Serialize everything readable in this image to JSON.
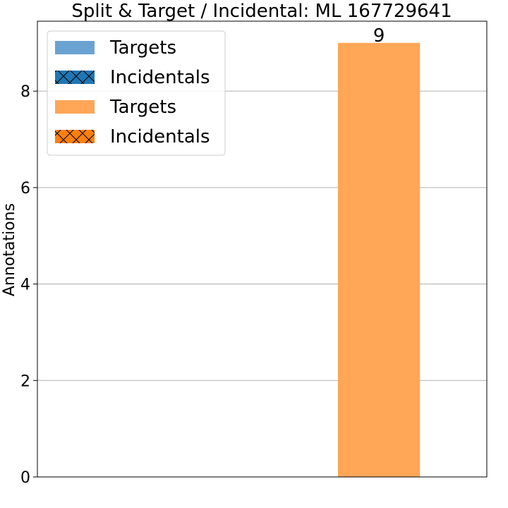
{
  "chart_data": {
    "type": "bar",
    "title": "Split & Target / Incidental: ML 167729641",
    "xlabel": "",
    "ylabel": "Annotations",
    "ylim": [
      0,
      9.45
    ],
    "yticks": [
      0,
      2,
      4,
      6,
      8
    ],
    "grid": "horizontal",
    "legend_position": "top-left",
    "categories": [
      "",
      ""
    ],
    "series": [
      {
        "name": "Targets",
        "color": "#6aa3d2",
        "hatch": false,
        "values": [
          0,
          0
        ]
      },
      {
        "name": "Incidentals",
        "color": "#1f77b4",
        "hatch": true,
        "values": [
          0,
          0
        ]
      },
      {
        "name": "Targets",
        "color": "#ffa657",
        "hatch": false,
        "values": [
          0,
          9
        ]
      },
      {
        "name": "Incidentals",
        "color": "#ff7f0e",
        "hatch": true,
        "values": [
          0,
          0
        ]
      }
    ],
    "data_labels": [
      {
        "category_index": 1,
        "series_index": 2,
        "text": "9"
      }
    ]
  }
}
